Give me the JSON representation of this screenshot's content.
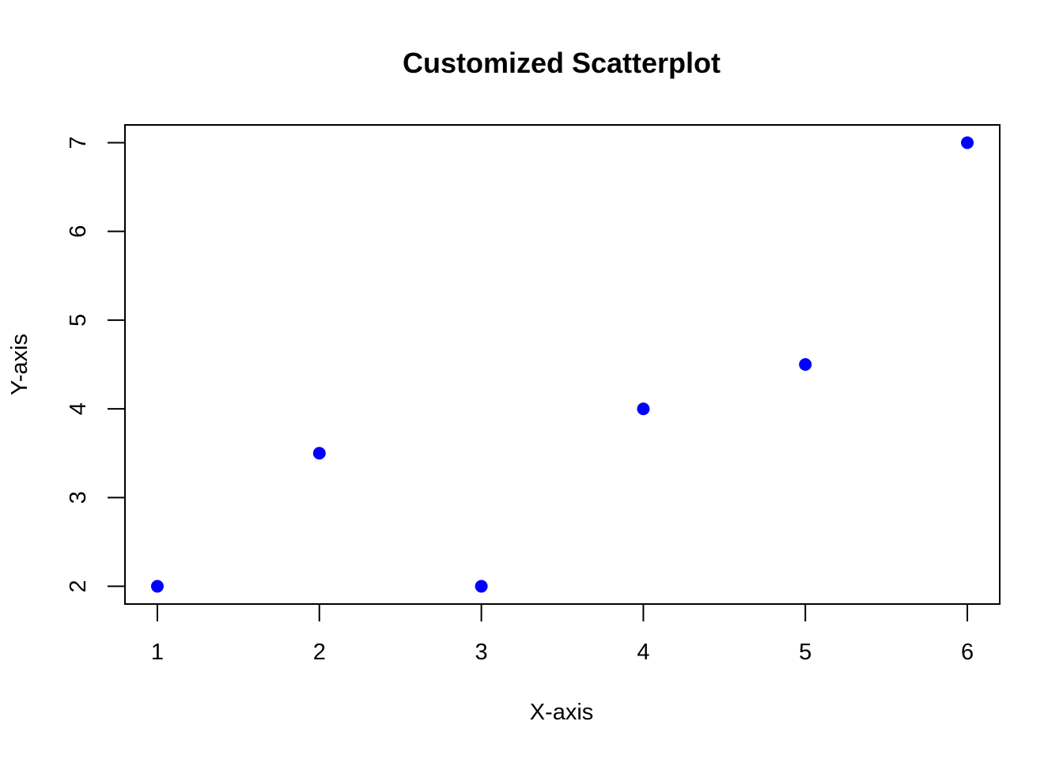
{
  "chart_data": {
    "type": "scatter",
    "title": "Customized Scatterplot",
    "xlabel": "X-axis",
    "ylabel": "Y-axis",
    "x": [
      1,
      2,
      3,
      4,
      5,
      6
    ],
    "y": [
      2,
      3.5,
      2,
      4,
      4.5,
      7
    ],
    "xlim": [
      0.8,
      6.2
    ],
    "ylim": [
      1.8,
      7.2
    ],
    "x_ticks": [
      "1",
      "2",
      "3",
      "4",
      "5",
      "6"
    ],
    "y_ticks": [
      "2",
      "3",
      "4",
      "5",
      "6",
      "7"
    ],
    "marker_color": "#0000ff",
    "grid": false,
    "legend": "none"
  }
}
